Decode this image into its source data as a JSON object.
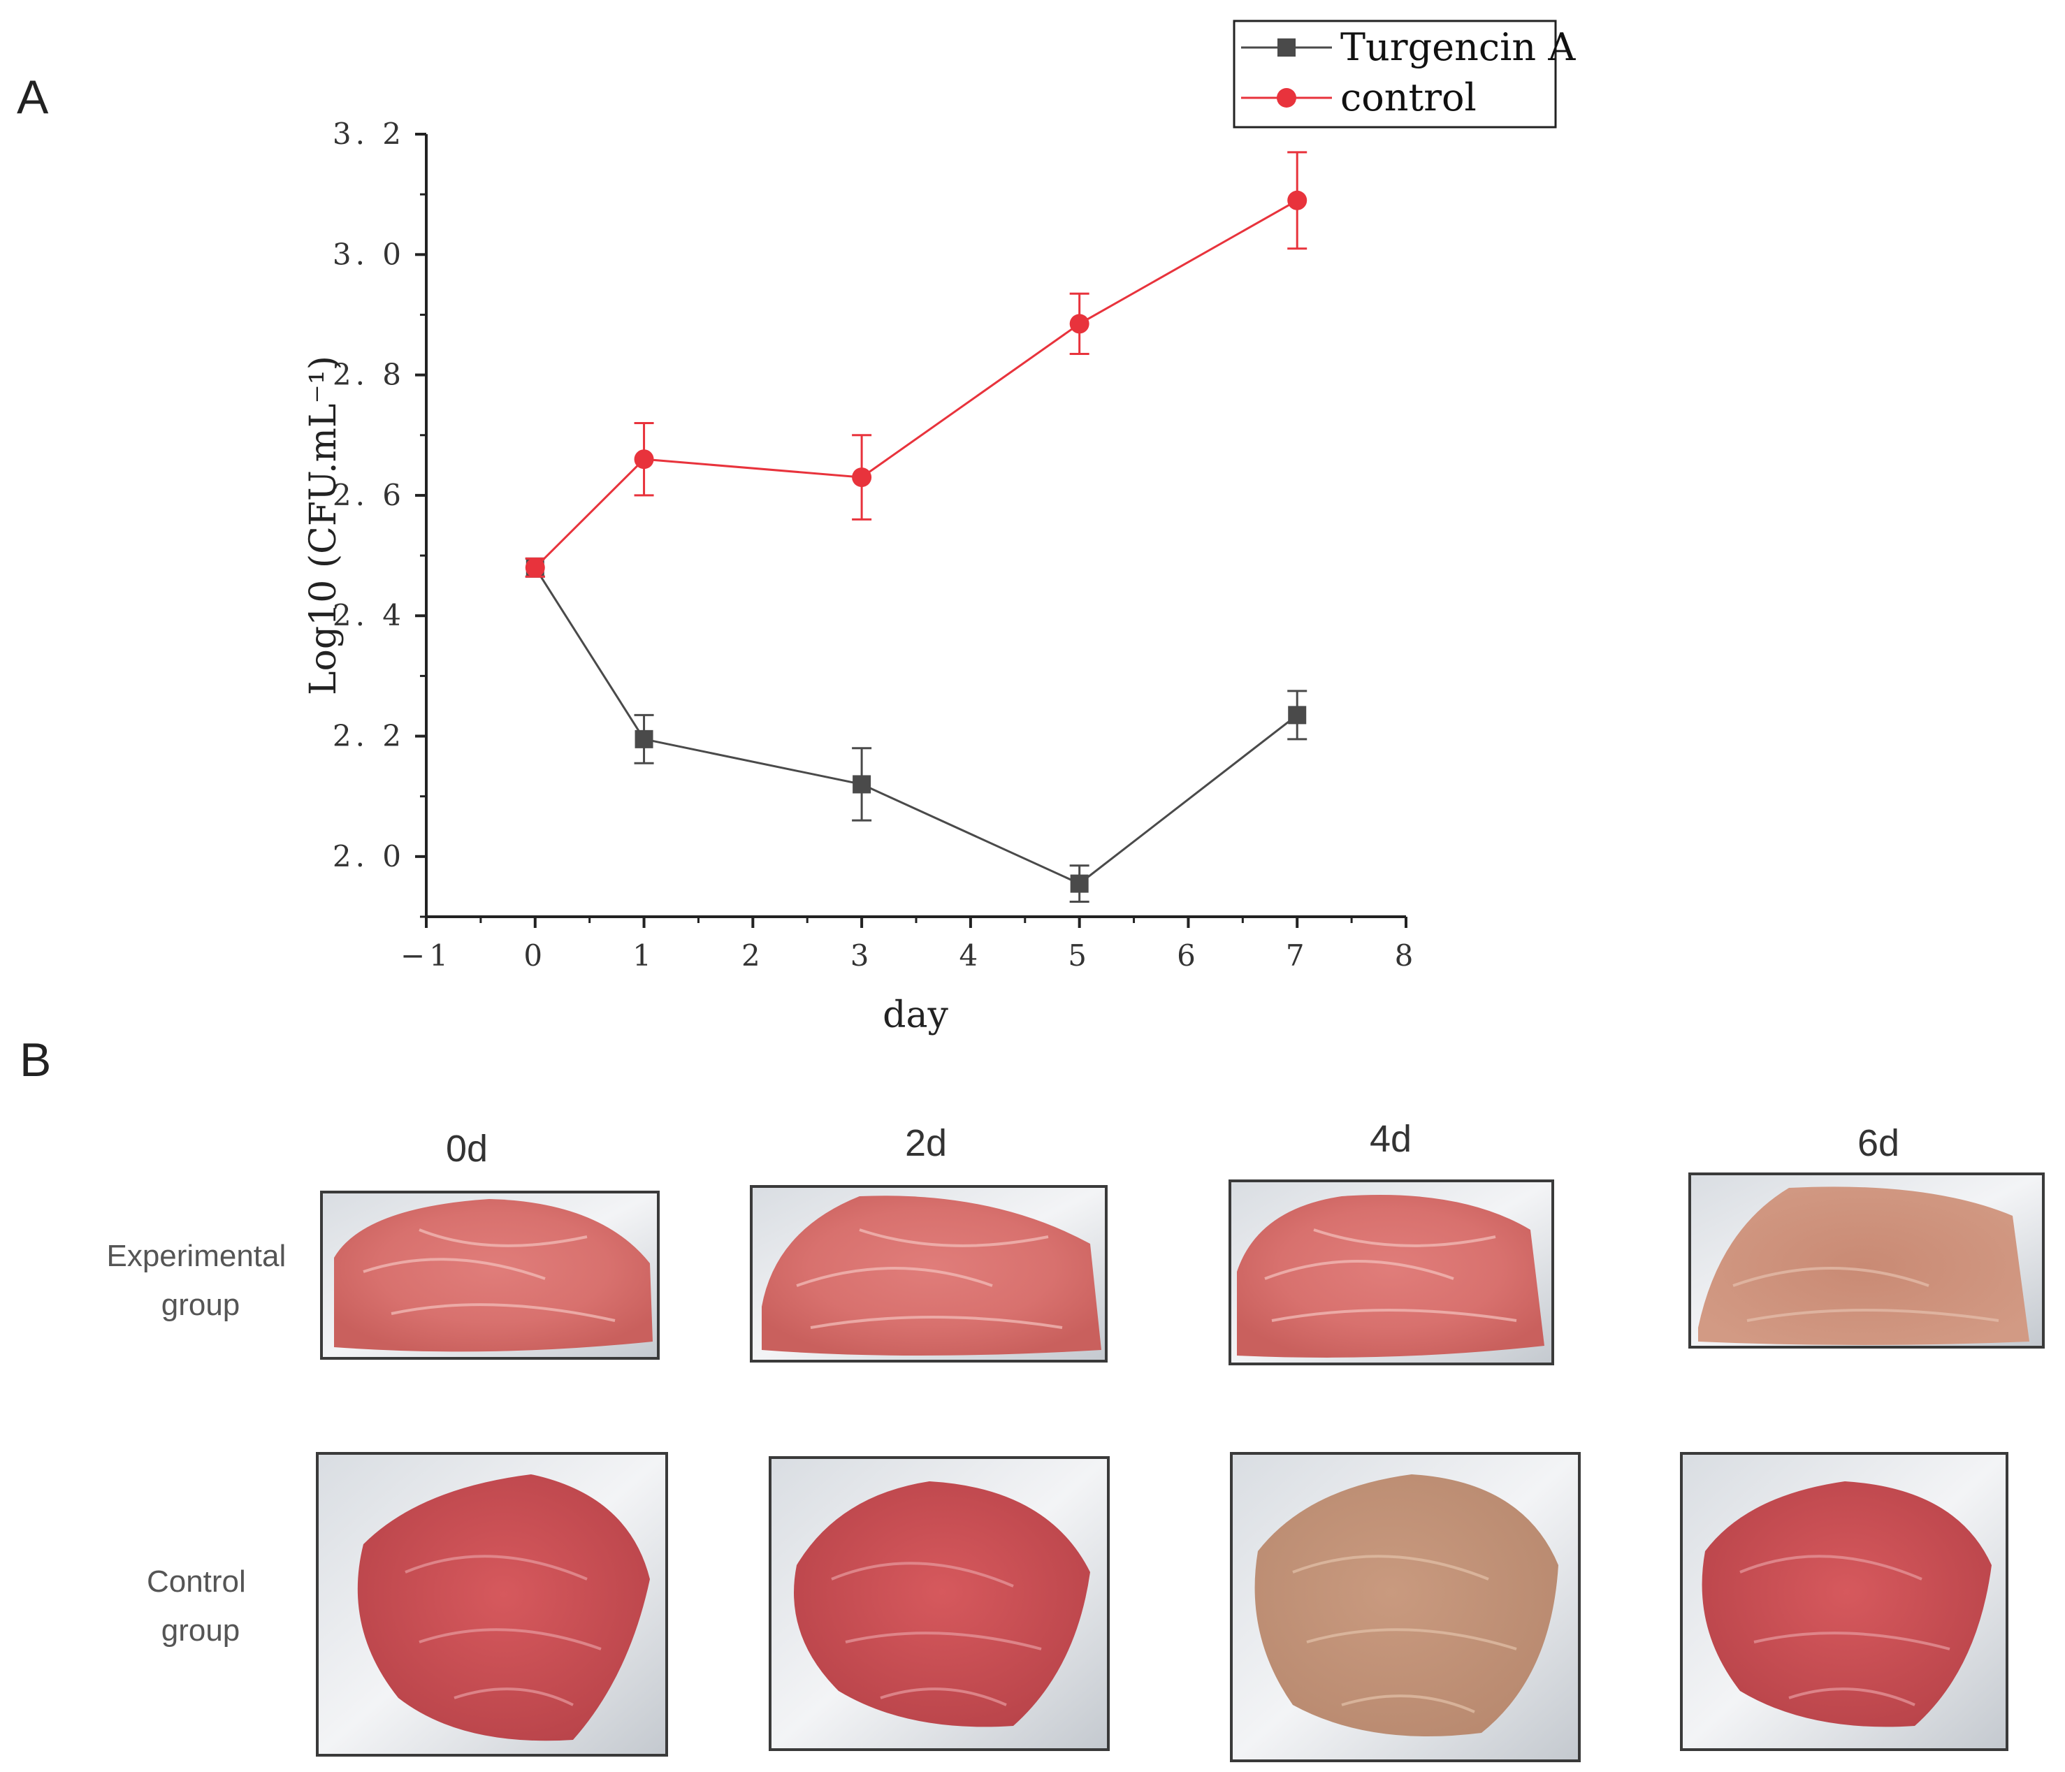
{
  "panels": {
    "a_letter": "A",
    "b_letter": "B"
  },
  "colors": {
    "turgencin": "#4a4a4a",
    "control": "#e8333c",
    "axis": "#222222"
  },
  "chart_data": {
    "type": "line",
    "title": "",
    "xlabel": "day",
    "ylabel": "Log10 (CFU.mL⁻¹)",
    "xlim": [
      -1,
      8
    ],
    "ylim": [
      1.9,
      3.2
    ],
    "x_ticks": [
      "−1",
      "0",
      "1",
      "2",
      "3",
      "4",
      "5",
      "6",
      "7",
      "8"
    ],
    "y_ticks": [
      "2. 0",
      "2. 2",
      "2. 4",
      "2. 6",
      "2. 8",
      "3. 0",
      "3. 2"
    ],
    "legend_position": "top-right",
    "series": [
      {
        "name": "Turgencin A",
        "marker": "square",
        "x": [
          0,
          1,
          3,
          5,
          7
        ],
        "values": [
          2.48,
          2.195,
          2.12,
          1.955,
          2.235
        ],
        "errors": [
          0.015,
          0.04,
          0.06,
          0.03,
          0.04
        ]
      },
      {
        "name": "control",
        "marker": "circle",
        "x": [
          0,
          1,
          3,
          5,
          7
        ],
        "values": [
          2.48,
          2.66,
          2.63,
          2.885,
          3.09
        ],
        "errors": [
          0.015,
          0.06,
          0.07,
          0.05,
          0.08
        ]
      }
    ]
  },
  "photos": {
    "days": [
      "0d",
      "2d",
      "4d",
      "6d"
    ],
    "rows": [
      {
        "label_lines": [
          "Experimental",
          "group"
        ]
      },
      {
        "label_lines": [
          "Control",
          "group"
        ]
      }
    ]
  }
}
